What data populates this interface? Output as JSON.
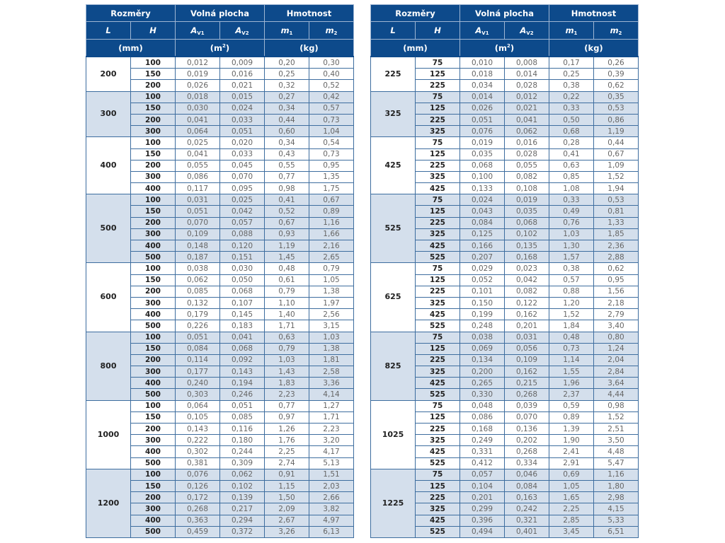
{
  "headers": {
    "group1": "Rozměry",
    "group2": "Volná plocha",
    "group3": "Hmotnost",
    "L": "L",
    "H": "H",
    "Av1_main": "A",
    "Av1_sub": "V1",
    "Av2_main": "A",
    "Av2_sub": "V2",
    "m1_main": "m",
    "m1_sub": "1",
    "m2_main": "m",
    "m2_sub": "2",
    "unit_mm": "(mm)",
    "unit_m2_main": "(m",
    "unit_m2_sup": "2",
    "unit_m2_end": ")",
    "unit_kg": "(kg)"
  },
  "colors": {
    "header_bg": "#0d4a8b",
    "shaded_row": "#d4dfec",
    "border": "#3d6d9f"
  },
  "tables": [
    {
      "groups": [
        {
          "L": "200",
          "rows": [
            [
              "100",
              "0,012",
              "0,009",
              "0,20",
              "0,30"
            ],
            [
              "150",
              "0,019",
              "0,016",
              "0,25",
              "0,40"
            ],
            [
              "200",
              "0,026",
              "0,021",
              "0,32",
              "0,52"
            ]
          ]
        },
        {
          "L": "300",
          "rows": [
            [
              "100",
              "0,018",
              "0,015",
              "0,27",
              "0,42"
            ],
            [
              "150",
              "0,030",
              "0,024",
              "0,34",
              "0,57"
            ],
            [
              "200",
              "0,041",
              "0,033",
              "0,44",
              "0,73"
            ],
            [
              "300",
              "0,064",
              "0,051",
              "0,60",
              "1,04"
            ]
          ]
        },
        {
          "L": "400",
          "rows": [
            [
              "100",
              "0,025",
              "0,020",
              "0,34",
              "0,54"
            ],
            [
              "150",
              "0,041",
              "0,033",
              "0,43",
              "0,73"
            ],
            [
              "200",
              "0,055",
              "0,045",
              "0,55",
              "0,95"
            ],
            [
              "300",
              "0,086",
              "0,070",
              "0,77",
              "1,35"
            ],
            [
              "400",
              "0,117",
              "0,095",
              "0,98",
              "1,75"
            ]
          ]
        },
        {
          "L": "500",
          "rows": [
            [
              "100",
              "0,031",
              "0,025",
              "0,41",
              "0,67"
            ],
            [
              "150",
              "0,051",
              "0,042",
              "0,52",
              "0,89"
            ],
            [
              "200",
              "0,070",
              "0,057",
              "0,67",
              "1,16"
            ],
            [
              "300",
              "0,109",
              "0,088",
              "0,93",
              "1,66"
            ],
            [
              "400",
              "0,148",
              "0,120",
              "1,19",
              "2,16"
            ],
            [
              "500",
              "0,187",
              "0,151",
              "1,45",
              "2,65"
            ]
          ]
        },
        {
          "L": "600",
          "rows": [
            [
              "100",
              "0,038",
              "0,030",
              "0,48",
              "0,79"
            ],
            [
              "150",
              "0,062",
              "0,050",
              "0,61",
              "1,05"
            ],
            [
              "200",
              "0,085",
              "0,068",
              "0,79",
              "1,38"
            ],
            [
              "300",
              "0,132",
              "0,107",
              "1,10",
              "1,97"
            ],
            [
              "400",
              "0,179",
              "0,145",
              "1,40",
              "2,56"
            ],
            [
              "500",
              "0,226",
              "0,183",
              "1,71",
              "3,15"
            ]
          ]
        },
        {
          "L": "800",
          "rows": [
            [
              "100",
              "0,051",
              "0,041",
              "0,63",
              "1,03"
            ],
            [
              "150",
              "0,084",
              "0,068",
              "0,79",
              "1,38"
            ],
            [
              "200",
              "0,114",
              "0,092",
              "1,03",
              "1,81"
            ],
            [
              "300",
              "0,177",
              "0,143",
              "1,43",
              "2,58"
            ],
            [
              "400",
              "0,240",
              "0,194",
              "1,83",
              "3,36"
            ],
            [
              "500",
              "0,303",
              "0,246",
              "2,23",
              "4,14"
            ]
          ]
        },
        {
          "L": "1000",
          "rows": [
            [
              "100",
              "0,064",
              "0,051",
              "0,77",
              "1,27"
            ],
            [
              "150",
              "0,105",
              "0,085",
              "0,97",
              "1,71"
            ],
            [
              "200",
              "0,143",
              "0,116",
              "1,26",
              "2,23"
            ],
            [
              "300",
              "0,222",
              "0,180",
              "1,76",
              "3,20"
            ],
            [
              "400",
              "0,302",
              "0,244",
              "2,25",
              "4,17"
            ],
            [
              "500",
              "0,381",
              "0,309",
              "2,74",
              "5,13"
            ]
          ]
        },
        {
          "L": "1200",
          "rows": [
            [
              "100",
              "0,076",
              "0,062",
              "0,91",
              "1,51"
            ],
            [
              "150",
              "0,126",
              "0,102",
              "1,15",
              "2,03"
            ],
            [
              "200",
              "0,172",
              "0,139",
              "1,50",
              "2,66"
            ],
            [
              "300",
              "0,268",
              "0,217",
              "2,09",
              "3,82"
            ],
            [
              "400",
              "0,363",
              "0,294",
              "2,67",
              "4,97"
            ],
            [
              "500",
              "0,459",
              "0,372",
              "3,26",
              "6,13"
            ]
          ]
        }
      ]
    },
    {
      "groups": [
        {
          "L": "225",
          "rows": [
            [
              "75",
              "0,010",
              "0,008",
              "0,17",
              "0,26"
            ],
            [
              "125",
              "0,018",
              "0,014",
              "0,25",
              "0,39"
            ],
            [
              "225",
              "0,034",
              "0,028",
              "0,38",
              "0,62"
            ]
          ]
        },
        {
          "L": "325",
          "rows": [
            [
              "75",
              "0,014",
              "0,012",
              "0,22",
              "0,35"
            ],
            [
              "125",
              "0,026",
              "0,021",
              "0,33",
              "0,53"
            ],
            [
              "225",
              "0,051",
              "0,041",
              "0,50",
              "0,86"
            ],
            [
              "325",
              "0,076",
              "0,062",
              "0,68",
              "1,19"
            ]
          ]
        },
        {
          "L": "425",
          "rows": [
            [
              "75",
              "0,019",
              "0,016",
              "0,28",
              "0,44"
            ],
            [
              "125",
              "0,035",
              "0,028",
              "0,41",
              "0,67"
            ],
            [
              "225",
              "0,068",
              "0,055",
              "0,63",
              "1,09"
            ],
            [
              "325",
              "0,100",
              "0,082",
              "0,85",
              "1,52"
            ],
            [
              "425",
              "0,133",
              "0,108",
              "1,08",
              "1,94"
            ]
          ]
        },
        {
          "L": "525",
          "rows": [
            [
              "75",
              "0,024",
              "0,019",
              "0,33",
              "0,53"
            ],
            [
              "125",
              "0,043",
              "0,035",
              "0,49",
              "0,81"
            ],
            [
              "225",
              "0,084",
              "0,068",
              "0,76",
              "1,33"
            ],
            [
              "325",
              "0,125",
              "0,102",
              "1,03",
              "1,85"
            ],
            [
              "425",
              "0,166",
              "0,135",
              "1,30",
              "2,36"
            ],
            [
              "525",
              "0,207",
              "0,168",
              "1,57",
              "2,88"
            ]
          ]
        },
        {
          "L": "625",
          "rows": [
            [
              "75",
              "0,029",
              "0,023",
              "0,38",
              "0,62"
            ],
            [
              "125",
              "0,052",
              "0,042",
              "0,57",
              "0,95"
            ],
            [
              "225",
              "0,101",
              "0,082",
              "0,88",
              "1,56"
            ],
            [
              "325",
              "0,150",
              "0,122",
              "1,20",
              "2,18"
            ],
            [
              "425",
              "0,199",
              "0,162",
              "1,52",
              "2,79"
            ],
            [
              "525",
              "0,248",
              "0,201",
              "1,84",
              "3,40"
            ]
          ]
        },
        {
          "L": "825",
          "rows": [
            [
              "75",
              "0,038",
              "0,031",
              "0,48",
              "0,80"
            ],
            [
              "125",
              "0,069",
              "0,056",
              "0,73",
              "1,24"
            ],
            [
              "225",
              "0,134",
              "0,109",
              "1,14",
              "2,04"
            ],
            [
              "325",
              "0,200",
              "0,162",
              "1,55",
              "2,84"
            ],
            [
              "425",
              "0,265",
              "0,215",
              "1,96",
              "3,64"
            ],
            [
              "525",
              "0,330",
              "0,268",
              "2,37",
              "4,44"
            ]
          ]
        },
        {
          "L": "1025",
          "rows": [
            [
              "75",
              "0,048",
              "0,039",
              "0,59",
              "0,98"
            ],
            [
              "125",
              "0,086",
              "0,070",
              "0,89",
              "1,52"
            ],
            [
              "225",
              "0,168",
              "0,136",
              "1,39",
              "2,51"
            ],
            [
              "325",
              "0,249",
              "0,202",
              "1,90",
              "3,50"
            ],
            [
              "425",
              "0,331",
              "0,268",
              "2,41",
              "4,48"
            ],
            [
              "525",
              "0,412",
              "0,334",
              "2,91",
              "5,47"
            ]
          ]
        },
        {
          "L": "1225",
          "rows": [
            [
              "75",
              "0,057",
              "0,046",
              "0,69",
              "1,16"
            ],
            [
              "125",
              "0,104",
              "0,084",
              "1,05",
              "1,80"
            ],
            [
              "225",
              "0,201",
              "0,163",
              "1,65",
              "2,98"
            ],
            [
              "325",
              "0,299",
              "0,242",
              "2,25",
              "4,15"
            ],
            [
              "425",
              "0,396",
              "0,321",
              "2,85",
              "5,33"
            ],
            [
              "525",
              "0,494",
              "0,401",
              "3,45",
              "6,51"
            ]
          ]
        }
      ]
    }
  ]
}
